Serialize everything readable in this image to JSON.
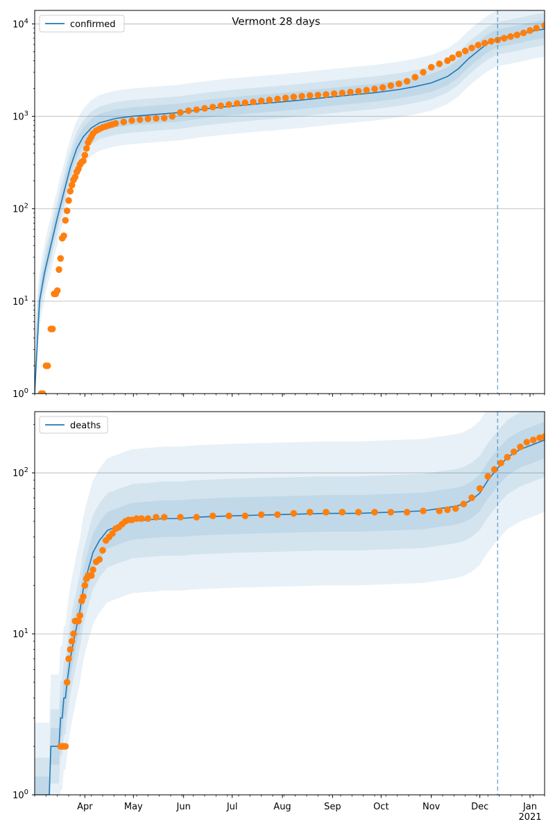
{
  "figure": {
    "title": "Vermont 28 days",
    "background": "#ffffff"
  },
  "colors": {
    "model_line": "#1f77b4",
    "observed_points": "#ff7f0e",
    "band": "#1f77b4",
    "vline": "#1f77b4",
    "grid": "#b0b0b0"
  },
  "chart_data": [
    {
      "type": "line",
      "legend": "confirmed",
      "legend_position": "upper-left",
      "yscale": "log",
      "ylim": [
        1,
        14000
      ],
      "ytick_values": [
        1,
        10,
        100,
        1000,
        10000
      ],
      "ytick_labels": [
        "10^0",
        "10^1",
        "10^2",
        "10^3",
        "10^4"
      ],
      "grid": "y-major",
      "xlim": [
        0,
        315
      ],
      "x_origin": "2020-03-01",
      "xtick_labels": [
        "Apr",
        "May",
        "Jun",
        "Jul",
        "Aug",
        "Sep",
        "Oct",
        "Nov",
        "Dec",
        "Jan\n2021"
      ],
      "xtick_days": [
        31,
        61,
        92,
        122,
        153,
        184,
        214,
        245,
        275,
        306
      ],
      "vline_day": 286,
      "series": [
        {
          "name": "confirmed",
          "kind": "model",
          "x": [
            0,
            3,
            6,
            10,
            14,
            18,
            22,
            26,
            30,
            35,
            40,
            50,
            60,
            75,
            90,
            105,
            120,
            135,
            150,
            165,
            180,
            195,
            210,
            225,
            235,
            245,
            255,
            262,
            268,
            275,
            280,
            286,
            292,
            300,
            308,
            315
          ],
          "y": [
            1,
            10,
            20,
            40,
            80,
            150,
            280,
            450,
            600,
            750,
            850,
            950,
            1000,
            1050,
            1100,
            1200,
            1280,
            1350,
            1420,
            1500,
            1600,
            1700,
            1800,
            1950,
            2100,
            2300,
            2700,
            3300,
            4200,
            5300,
            6200,
            7000,
            7300,
            7800,
            8400,
            8800
          ],
          "bands": [
            2.0,
            1.5,
            1.25
          ]
        },
        {
          "name": "confirmed",
          "kind": "observed",
          "x": [
            4,
            5,
            7,
            8,
            10,
            11,
            12,
            13,
            14,
            15,
            16,
            17,
            18,
            19,
            20,
            21,
            22,
            23,
            24,
            25,
            26,
            27,
            28,
            29,
            30,
            31,
            32,
            33,
            34,
            35,
            36,
            38,
            40,
            42,
            44,
            46,
            48,
            50,
            55,
            60,
            65,
            70,
            75,
            80,
            85,
            90,
            95,
            100,
            105,
            110,
            115,
            120,
            125,
            130,
            135,
            140,
            145,
            150,
            155,
            160,
            165,
            170,
            175,
            180,
            185,
            190,
            195,
            200,
            205,
            210,
            215,
            220,
            225,
            230,
            235,
            240,
            245,
            250,
            255,
            258,
            262,
            266,
            270,
            274,
            278,
            282,
            286,
            290,
            294,
            298,
            302,
            306,
            310,
            315
          ],
          "y": [
            1,
            1,
            2,
            2,
            5,
            5,
            12,
            12,
            13,
            22,
            29,
            48,
            51,
            75,
            95,
            123,
            155,
            180,
            205,
            220,
            250,
            270,
            300,
            320,
            330,
            380,
            450,
            520,
            560,
            600,
            650,
            700,
            730,
            760,
            780,
            800,
            820,
            840,
            870,
            900,
            920,
            940,
            950,
            960,
            1000,
            1100,
            1150,
            1180,
            1220,
            1260,
            1300,
            1340,
            1380,
            1400,
            1430,
            1470,
            1500,
            1540,
            1580,
            1620,
            1650,
            1680,
            1700,
            1720,
            1760,
            1790,
            1830,
            1870,
            1920,
            1980,
            2050,
            2150,
            2250,
            2400,
            2650,
            3000,
            3400,
            3700,
            4000,
            4300,
            4700,
            5100,
            5500,
            5900,
            6200,
            6500,
            6700,
            7000,
            7300,
            7600,
            8000,
            8500,
            9000,
            9600
          ]
        }
      ]
    },
    {
      "type": "line",
      "legend": "deaths",
      "legend_position": "upper-left",
      "yscale": "log",
      "ylim": [
        1,
        240
      ],
      "ytick_values": [
        1,
        10,
        100
      ],
      "ytick_labels": [
        "10^0",
        "10^1",
        "10^2"
      ],
      "grid": "y-major",
      "xlim": [
        0,
        315
      ],
      "x_origin": "2020-03-01",
      "xtick_labels": [
        "Apr",
        "May",
        "Jun",
        "Jul",
        "Aug",
        "Sep",
        "Oct",
        "Nov",
        "Dec",
        "Jan\n2021"
      ],
      "xtick_days": [
        31,
        61,
        92,
        122,
        153,
        184,
        214,
        245,
        275,
        306
      ],
      "vline_day": 286,
      "series": [
        {
          "name": "deaths",
          "kind": "model",
          "x": [
            0,
            9,
            10,
            15,
            16,
            17,
            18,
            19,
            20,
            22,
            25,
            28,
            30,
            33,
            36,
            40,
            45,
            50,
            55,
            60,
            70,
            80,
            90,
            100,
            120,
            150,
            180,
            200,
            220,
            240,
            250,
            255,
            260,
            265,
            270,
            275,
            280,
            286,
            292,
            300,
            308,
            315
          ],
          "y": [
            1,
            1,
            2,
            2,
            3,
            3,
            4,
            4,
            5,
            7,
            10,
            14,
            19,
            25,
            32,
            38,
            44,
            46,
            48,
            50,
            51,
            52,
            52,
            53,
            54,
            55,
            56,
            56,
            57,
            58,
            60,
            61,
            62,
            64,
            68,
            75,
            90,
            107,
            125,
            140,
            150,
            160
          ],
          "bands": [
            2.8,
            1.7,
            1.3
          ]
        },
        {
          "name": "deaths",
          "kind": "observed",
          "x": [
            16,
            17,
            18,
            19,
            20,
            21,
            22,
            23,
            24,
            25,
            26,
            27,
            28,
            29,
            30,
            31,
            32,
            33,
            34,
            35,
            36,
            38,
            40,
            42,
            44,
            46,
            48,
            50,
            52,
            54,
            56,
            58,
            60,
            63,
            66,
            70,
            75,
            80,
            90,
            100,
            110,
            120,
            130,
            140,
            150,
            160,
            170,
            180,
            190,
            200,
            210,
            220,
            230,
            240,
            250,
            255,
            260,
            265,
            270,
            275,
            280,
            284,
            288,
            292,
            296,
            300,
            304,
            308,
            312,
            315
          ],
          "y": [
            2,
            2,
            2,
            2,
            5,
            7,
            8,
            9,
            10,
            12,
            12,
            12,
            13,
            16,
            17,
            20,
            22,
            23,
            23,
            23,
            25,
            28,
            29,
            33,
            38,
            40,
            42,
            45,
            46,
            48,
            50,
            51,
            51,
            52,
            52,
            52,
            53,
            53,
            53,
            53,
            54,
            54,
            54,
            55,
            55,
            56,
            57,
            57,
            57,
            57,
            57,
            57,
            57,
            58,
            58,
            59,
            60,
            64,
            70,
            80,
            95,
            105,
            115,
            125,
            135,
            145,
            155,
            160,
            165,
            168
          ]
        }
      ]
    }
  ]
}
